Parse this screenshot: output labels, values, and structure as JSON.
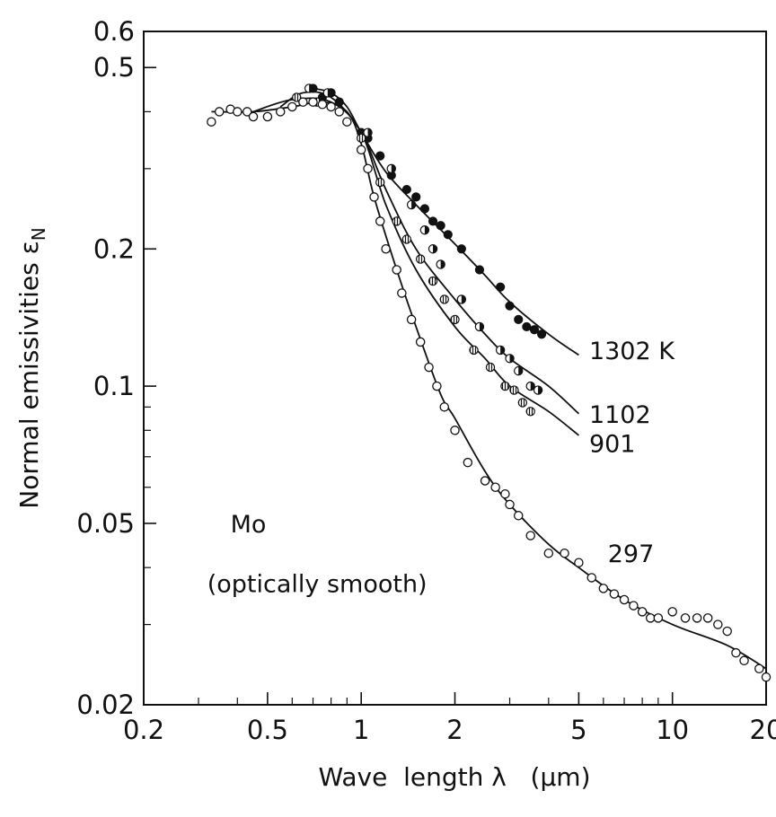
{
  "chart_data": {
    "type": "scatter",
    "xlabel": "Wave  length λ   (μm)",
    "ylabel": "Normal  emissivities  ε",
    "ylabel_subscript": "N",
    "x_scale": "log",
    "y_scale": "log",
    "xlim": [
      0.2,
      20
    ],
    "ylim": [
      0.02,
      0.6
    ],
    "x_ticks": [
      {
        "value": 0.2,
        "label": "0.2"
      },
      {
        "value": 0.5,
        "label": "0.5"
      },
      {
        "value": 1,
        "label": "1"
      },
      {
        "value": 2,
        "label": "2"
      },
      {
        "value": 5,
        "label": "5"
      },
      {
        "value": 10,
        "label": "10"
      },
      {
        "value": 20,
        "label": "20"
      }
    ],
    "y_ticks": [
      {
        "value": 0.02,
        "label": "0.02"
      },
      {
        "value": 0.05,
        "label": "0.05"
      },
      {
        "value": 0.1,
        "label": "0.1"
      },
      {
        "value": 0.2,
        "label": "0.2"
      },
      {
        "value": 0.5,
        "label": "0.5"
      },
      {
        "value": 0.6,
        "label": "0.6"
      }
    ],
    "annotations": [
      {
        "text": "Mo",
        "x": 0.38,
        "y": 0.05
      },
      {
        "text": "(optically smooth)",
        "x": 0.32,
        "y": 0.037
      }
    ],
    "series": [
      {
        "name": "1302 K",
        "label_at": [
          5.4,
          0.12
        ],
        "marker": "filled",
        "curve": [
          [
            0.7,
            0.45
          ],
          [
            0.8,
            0.44
          ],
          [
            0.9,
            0.41
          ],
          [
            1.0,
            0.36
          ],
          [
            1.2,
            0.295
          ],
          [
            1.5,
            0.25
          ],
          [
            2.0,
            0.205
          ],
          [
            2.5,
            0.175
          ],
          [
            3.0,
            0.153
          ],
          [
            4.0,
            0.13
          ],
          [
            5.0,
            0.117
          ]
        ],
        "points": [
          [
            0.7,
            0.45
          ],
          [
            0.75,
            0.43
          ],
          [
            0.8,
            0.44
          ],
          [
            0.85,
            0.42
          ],
          [
            1.0,
            0.36
          ],
          [
            1.05,
            0.35
          ],
          [
            1.15,
            0.32
          ],
          [
            1.25,
            0.29
          ],
          [
            1.4,
            0.27
          ],
          [
            1.5,
            0.26
          ],
          [
            1.6,
            0.245
          ],
          [
            1.7,
            0.23
          ],
          [
            1.8,
            0.225
          ],
          [
            1.9,
            0.215
          ],
          [
            2.1,
            0.2
          ],
          [
            2.4,
            0.18
          ],
          [
            2.8,
            0.165
          ],
          [
            3.0,
            0.15
          ],
          [
            3.2,
            0.14
          ],
          [
            3.4,
            0.135
          ],
          [
            3.6,
            0.133
          ],
          [
            3.8,
            0.13
          ]
        ]
      },
      {
        "name": "1102",
        "label_at": [
          5.4,
          0.087
        ],
        "marker": "half",
        "curve": [
          [
            0.55,
            0.41
          ],
          [
            0.65,
            0.44
          ],
          [
            0.8,
            0.43
          ],
          [
            1.0,
            0.36
          ],
          [
            1.2,
            0.27
          ],
          [
            1.5,
            0.2
          ],
          [
            2.0,
            0.155
          ],
          [
            2.5,
            0.13
          ],
          [
            3.0,
            0.115
          ],
          [
            4.0,
            0.1
          ],
          [
            5.0,
            0.087
          ]
        ],
        "points": [
          [
            0.68,
            0.45
          ],
          [
            0.78,
            0.44
          ],
          [
            1.05,
            0.36
          ],
          [
            1.25,
            0.3
          ],
          [
            1.45,
            0.25
          ],
          [
            1.6,
            0.22
          ],
          [
            1.7,
            0.2
          ],
          [
            1.8,
            0.185
          ],
          [
            2.1,
            0.155
          ],
          [
            2.4,
            0.135
          ],
          [
            2.8,
            0.12
          ],
          [
            3.0,
            0.115
          ],
          [
            3.2,
            0.108
          ],
          [
            3.5,
            0.1
          ],
          [
            3.7,
            0.098
          ]
        ]
      },
      {
        "name": "901",
        "label_at": [
          5.4,
          0.075
        ],
        "marker": "striped",
        "curve": [
          [
            0.45,
            0.4
          ],
          [
            0.6,
            0.425
          ],
          [
            0.8,
            0.42
          ],
          [
            1.0,
            0.36
          ],
          [
            1.2,
            0.25
          ],
          [
            1.5,
            0.18
          ],
          [
            2.0,
            0.135
          ],
          [
            2.5,
            0.115
          ],
          [
            3.0,
            0.1
          ],
          [
            4.0,
            0.088
          ],
          [
            5.0,
            0.078
          ]
        ],
        "points": [
          [
            0.62,
            0.43
          ],
          [
            0.72,
            0.42
          ],
          [
            1.0,
            0.35
          ],
          [
            1.15,
            0.28
          ],
          [
            1.3,
            0.23
          ],
          [
            1.4,
            0.21
          ],
          [
            1.55,
            0.19
          ],
          [
            1.7,
            0.17
          ],
          [
            1.85,
            0.155
          ],
          [
            2.0,
            0.14
          ],
          [
            2.3,
            0.12
          ],
          [
            2.6,
            0.11
          ],
          [
            2.9,
            0.1
          ],
          [
            3.1,
            0.098
          ],
          [
            3.3,
            0.092
          ],
          [
            3.5,
            0.088
          ]
        ]
      },
      {
        "name": "297",
        "label_at": [
          6.2,
          0.043
        ],
        "marker": "open",
        "curve": [
          [
            0.33,
            0.4
          ],
          [
            0.45,
            0.4
          ],
          [
            0.6,
            0.41
          ],
          [
            0.75,
            0.42
          ],
          [
            0.9,
            0.4
          ],
          [
            1.0,
            0.34
          ],
          [
            1.1,
            0.26
          ],
          [
            1.3,
            0.18
          ],
          [
            1.5,
            0.135
          ],
          [
            1.8,
            0.096
          ],
          [
            2.0,
            0.085
          ],
          [
            2.5,
            0.065
          ],
          [
            3.0,
            0.055
          ],
          [
            4.0,
            0.045
          ],
          [
            5.0,
            0.04
          ],
          [
            7.0,
            0.034
          ],
          [
            10.0,
            0.03
          ],
          [
            15.0,
            0.027
          ],
          [
            20.0,
            0.024
          ]
        ],
        "points": [
          [
            0.33,
            0.38
          ],
          [
            0.35,
            0.4
          ],
          [
            0.38,
            0.405
          ],
          [
            0.4,
            0.4
          ],
          [
            0.43,
            0.4
          ],
          [
            0.45,
            0.39
          ],
          [
            0.5,
            0.39
          ],
          [
            0.55,
            0.4
          ],
          [
            0.6,
            0.41
          ],
          [
            0.65,
            0.42
          ],
          [
            0.7,
            0.42
          ],
          [
            0.75,
            0.415
          ],
          [
            0.8,
            0.41
          ],
          [
            0.85,
            0.4
          ],
          [
            0.9,
            0.38
          ],
          [
            1.0,
            0.33
          ],
          [
            1.05,
            0.3
          ],
          [
            1.1,
            0.26
          ],
          [
            1.15,
            0.23
          ],
          [
            1.2,
            0.2
          ],
          [
            1.3,
            0.18
          ],
          [
            1.35,
            0.16
          ],
          [
            1.45,
            0.14
          ],
          [
            1.55,
            0.125
          ],
          [
            1.65,
            0.11
          ],
          [
            1.75,
            0.1
          ],
          [
            1.85,
            0.09
          ],
          [
            2.0,
            0.08
          ],
          [
            2.2,
            0.068
          ],
          [
            2.5,
            0.062
          ],
          [
            2.7,
            0.06
          ],
          [
            2.9,
            0.058
          ],
          [
            3.0,
            0.055
          ],
          [
            3.2,
            0.052
          ],
          [
            3.5,
            0.047
          ],
          [
            4.0,
            0.043
          ],
          [
            4.5,
            0.043
          ],
          [
            5.0,
            0.041
          ],
          [
            5.5,
            0.038
          ],
          [
            6.0,
            0.036
          ],
          [
            6.5,
            0.035
          ],
          [
            7.0,
            0.034
          ],
          [
            7.5,
            0.033
          ],
          [
            8.0,
            0.032
          ],
          [
            8.5,
            0.031
          ],
          [
            9.0,
            0.031
          ],
          [
            10.0,
            0.032
          ],
          [
            11.0,
            0.031
          ],
          [
            12.0,
            0.031
          ],
          [
            13.0,
            0.031
          ],
          [
            14.0,
            0.03
          ],
          [
            15.0,
            0.029
          ],
          [
            16.0,
            0.026
          ],
          [
            17.0,
            0.025
          ],
          [
            19.0,
            0.024
          ],
          [
            20.0,
            0.023
          ]
        ]
      }
    ]
  }
}
